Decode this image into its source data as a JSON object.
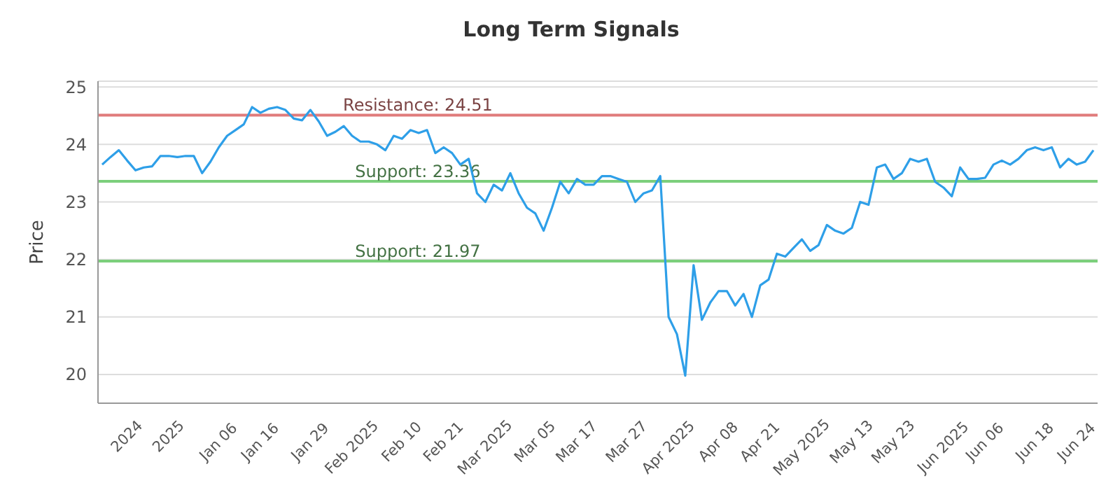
{
  "chart_data": {
    "type": "line",
    "title": "Long Term Signals",
    "ylabel": "Price",
    "categories": [
      null,
      null,
      null,
      "2024",
      null,
      null,
      null,
      null,
      "2025",
      null,
      null,
      null,
      null,
      null,
      "Jan 06",
      null,
      null,
      null,
      null,
      "Jan 16",
      null,
      null,
      null,
      null,
      null,
      "Jan 29",
      null,
      null,
      null,
      null,
      "Feb 2025",
      null,
      null,
      null,
      null,
      null,
      "Feb 10",
      null,
      null,
      null,
      null,
      "Feb 21",
      null,
      null,
      null,
      null,
      "Mar 2025",
      null,
      null,
      null,
      null,
      null,
      "Mar 05",
      null,
      null,
      null,
      null,
      "Mar 17",
      null,
      null,
      null,
      null,
      null,
      "Mar 27",
      null,
      null,
      null,
      null,
      "Apr 2025",
      null,
      null,
      null,
      null,
      null,
      "Apr 08",
      null,
      null,
      null,
      null,
      "Apr 21",
      null,
      null,
      null,
      null,
      "May 2025",
      null,
      null,
      null,
      null,
      null,
      "May 13",
      null,
      null,
      null,
      null,
      "May 23",
      null,
      null,
      null,
      null,
      null,
      "Jun 2025",
      null,
      null,
      null,
      null,
      "Jun 06",
      null,
      null,
      null,
      null,
      null,
      "Jun 18",
      null,
      null,
      null,
      null,
      "Jun 24",
      null,
      null
    ],
    "values": [
      23.65,
      23.78,
      23.9,
      23.72,
      23.55,
      23.6,
      23.62,
      23.8,
      23.8,
      23.78,
      23.8,
      23.8,
      23.5,
      23.7,
      23.95,
      24.15,
      24.25,
      24.35,
      24.65,
      24.55,
      24.62,
      24.65,
      24.6,
      24.45,
      24.42,
      24.6,
      24.4,
      24.15,
      24.22,
      24.32,
      24.15,
      24.05,
      24.05,
      24.0,
      23.9,
      24.15,
      24.1,
      24.25,
      24.2,
      24.25,
      23.85,
      23.95,
      23.85,
      23.65,
      23.75,
      23.15,
      23.0,
      23.3,
      23.2,
      23.5,
      23.15,
      22.9,
      22.8,
      22.5,
      22.9,
      23.35,
      23.15,
      23.4,
      23.3,
      23.3,
      23.45,
      23.45,
      23.4,
      23.35,
      23.0,
      23.15,
      23.2,
      23.45,
      21.0,
      20.7,
      19.98,
      21.9,
      20.95,
      21.25,
      21.45,
      21.45,
      21.2,
      21.4,
      21.0,
      21.55,
      21.65,
      22.1,
      22.05,
      22.2,
      22.35,
      22.15,
      22.25,
      22.6,
      22.5,
      22.45,
      22.55,
      23.0,
      22.95,
      23.6,
      23.65,
      23.4,
      23.5,
      23.75,
      23.7,
      23.75,
      23.35,
      23.25,
      23.1,
      23.6,
      23.4,
      23.4,
      23.42,
      23.65,
      23.72,
      23.65,
      23.75,
      23.9,
      23.95,
      23.9,
      23.95,
      23.6,
      23.75,
      23.65,
      23.7,
      23.9
    ],
    "color": "#2e9fe8",
    "marker": "none",
    "line_style": "solid",
    "ylim": [
      19.5,
      25.1
    ],
    "yticks": [
      20,
      21,
      22,
      23,
      24,
      25
    ],
    "grid": "y",
    "ref_lines": [
      {
        "axis": "y",
        "value": 24.51,
        "label": "Resistance: 24.51",
        "color": "#e07b7b"
      },
      {
        "axis": "y",
        "value": 23.36,
        "label": "Support: 23.36",
        "color": "#7ccf7c"
      },
      {
        "axis": "y",
        "value": 21.97,
        "label": "Support: 21.97",
        "color": "#7ccf7c"
      }
    ]
  }
}
